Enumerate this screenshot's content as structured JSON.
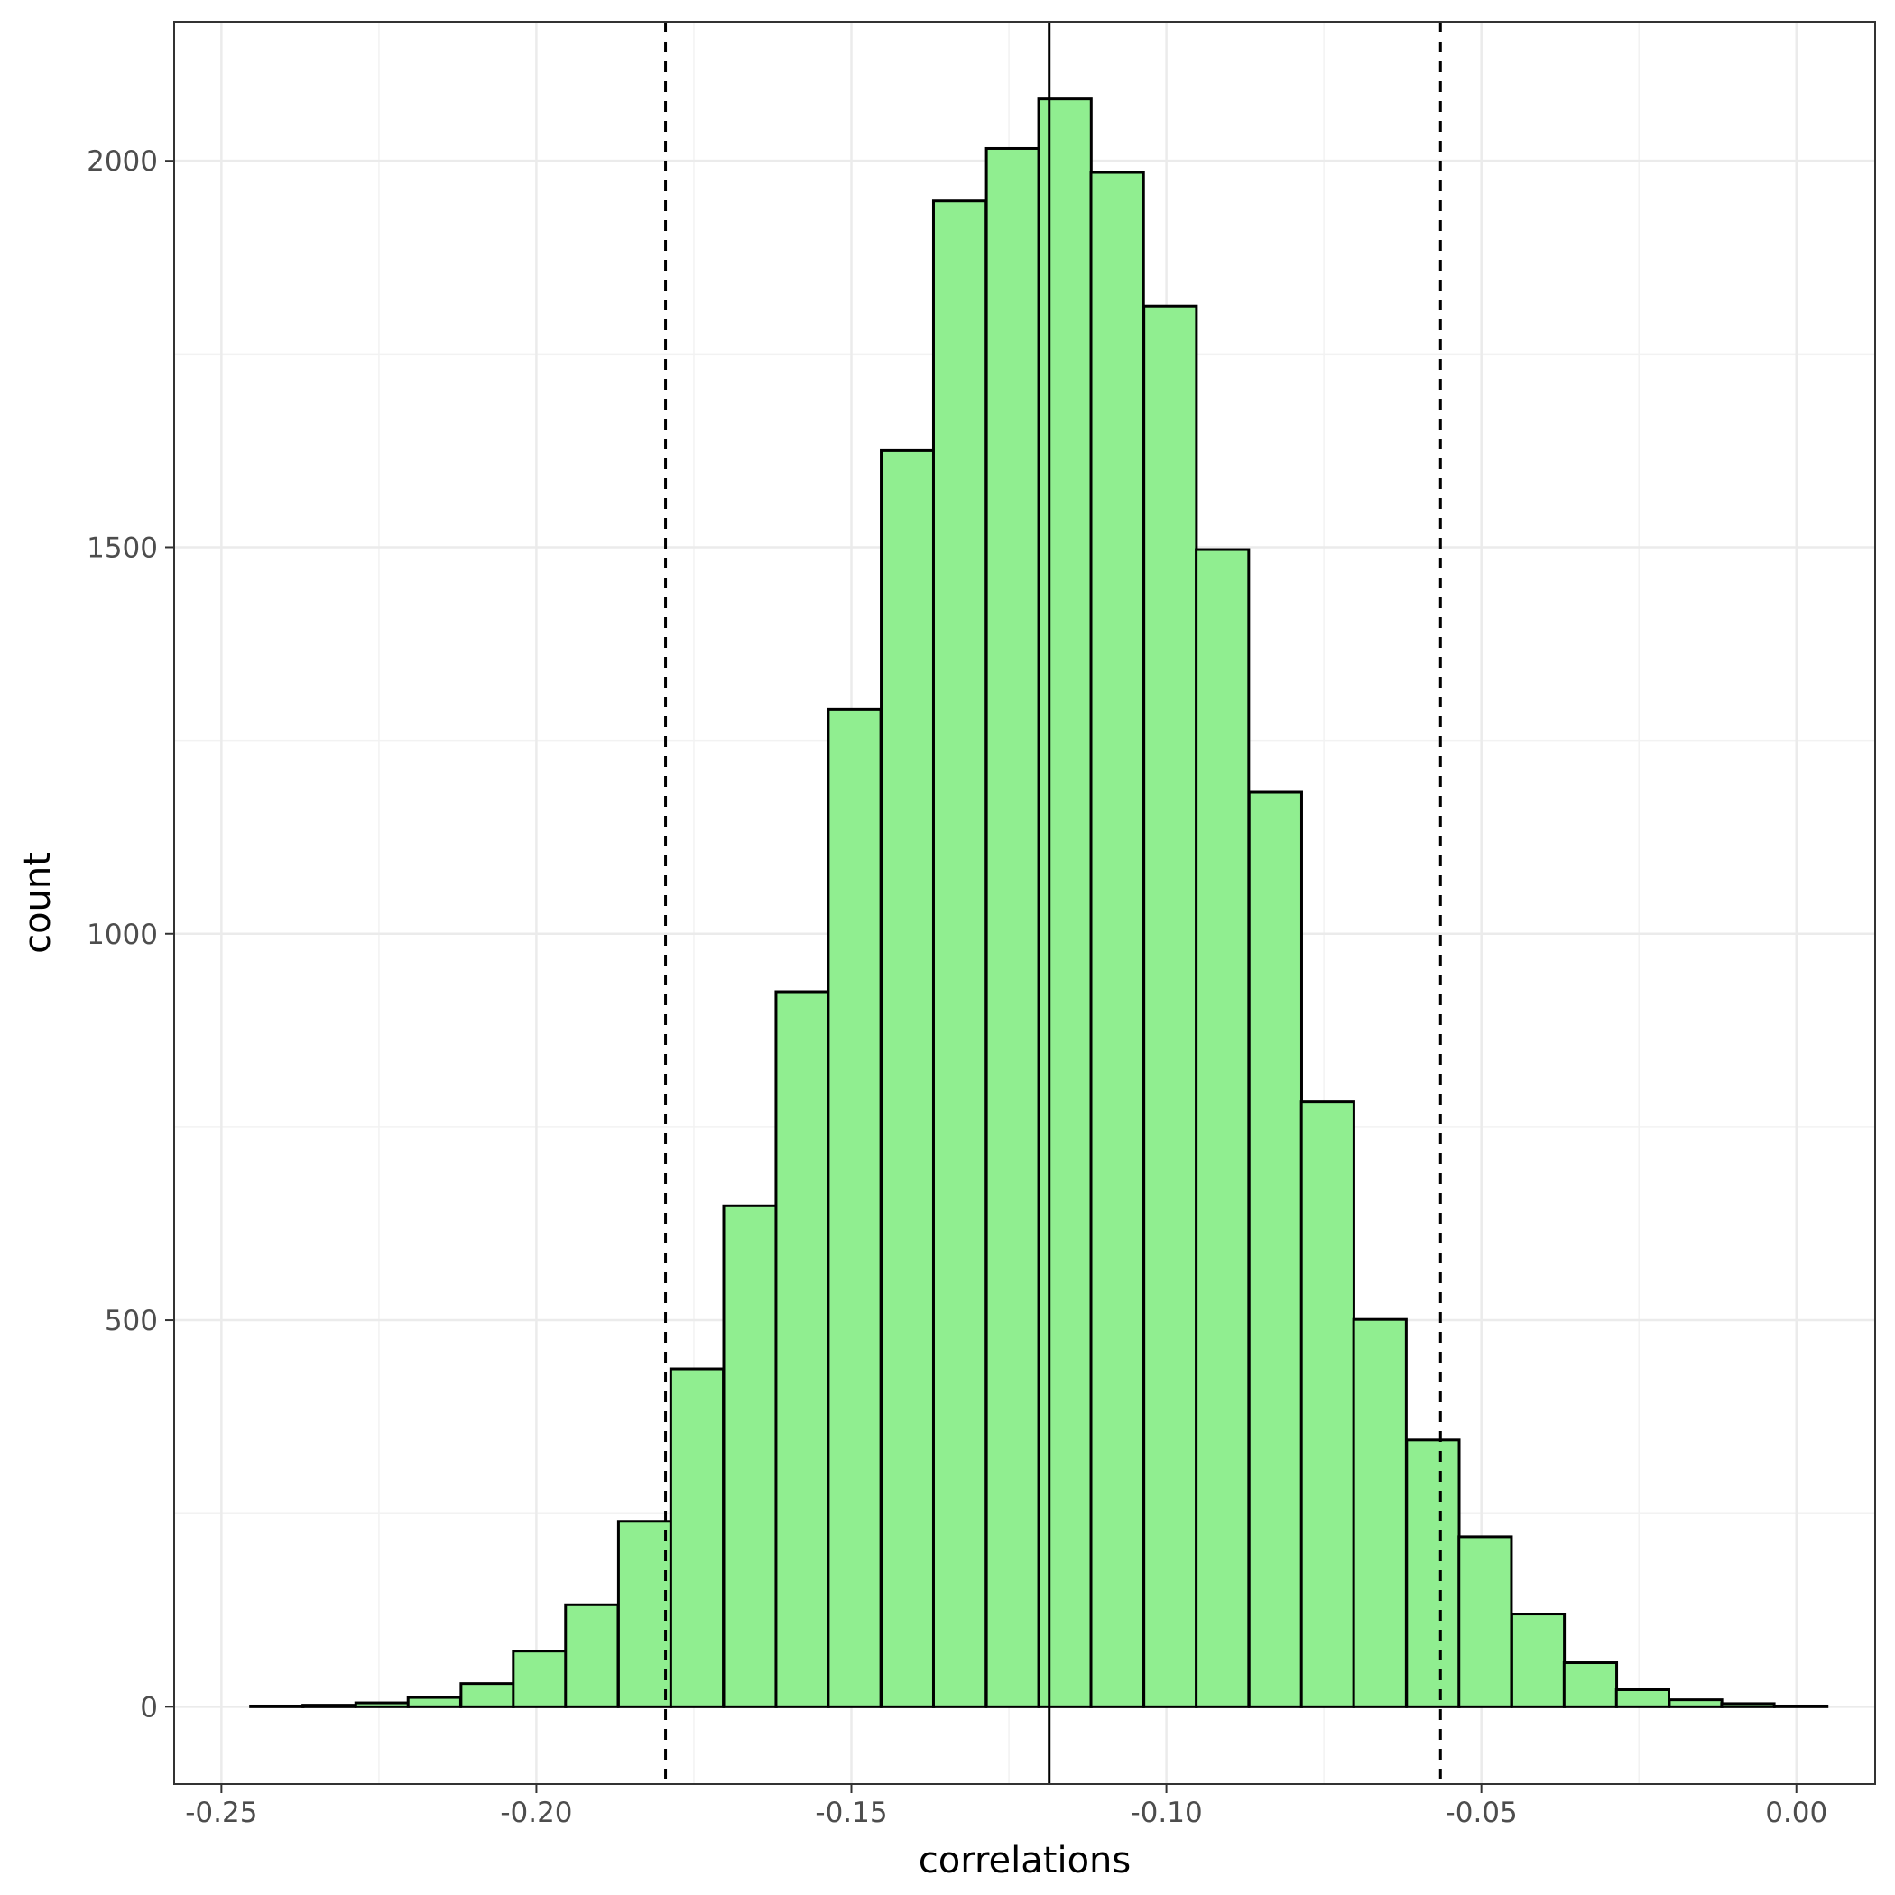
{
  "chart_data": {
    "type": "bar",
    "subtype": "histogram",
    "title": "",
    "xlabel": "correlations",
    "ylabel": "count",
    "xlim": [
      -0.2575,
      0.0125
    ],
    "ylim": [
      -100,
      2180
    ],
    "x_ticks": [
      -0.25,
      -0.2,
      -0.15,
      -0.1,
      -0.05,
      0.0
    ],
    "x_tick_labels": [
      "-0.25",
      "-0.20",
      "-0.15",
      "-0.10",
      "-0.05",
      "0.00"
    ],
    "y_ticks": [
      0,
      500,
      1000,
      1500,
      2000
    ],
    "y_tick_labels": [
      "0",
      "500",
      "1000",
      "1500",
      "2000"
    ],
    "grid": true,
    "legend": "none",
    "bin_width": 0.00834,
    "bins": [
      {
        "x": -0.2412,
        "count": 1
      },
      {
        "x": -0.2329,
        "count": 2
      },
      {
        "x": -0.2245,
        "count": 5
      },
      {
        "x": -0.2162,
        "count": 12
      },
      {
        "x": -0.2078,
        "count": 30
      },
      {
        "x": -0.1995,
        "count": 72
      },
      {
        "x": -0.1912,
        "count": 132
      },
      {
        "x": -0.1828,
        "count": 240
      },
      {
        "x": -0.1745,
        "count": 437
      },
      {
        "x": -0.1661,
        "count": 648
      },
      {
        "x": -0.1578,
        "count": 925
      },
      {
        "x": -0.1495,
        "count": 1290
      },
      {
        "x": -0.1411,
        "count": 1625
      },
      {
        "x": -0.1328,
        "count": 1948
      },
      {
        "x": -0.1244,
        "count": 2016
      },
      {
        "x": -0.1161,
        "count": 2080
      },
      {
        "x": -0.1078,
        "count": 1985
      },
      {
        "x": -0.0994,
        "count": 1812
      },
      {
        "x": -0.0911,
        "count": 1497
      },
      {
        "x": -0.0827,
        "count": 1183
      },
      {
        "x": -0.0744,
        "count": 783
      },
      {
        "x": -0.0661,
        "count": 501
      },
      {
        "x": -0.0577,
        "count": 345
      },
      {
        "x": -0.0494,
        "count": 220
      },
      {
        "x": -0.041,
        "count": 120
      },
      {
        "x": -0.0327,
        "count": 57
      },
      {
        "x": -0.0244,
        "count": 22
      },
      {
        "x": -0.016,
        "count": 9
      },
      {
        "x": -0.0077,
        "count": 4
      },
      {
        "x": 0.0007,
        "count": 1
      }
    ],
    "vlines": [
      {
        "x": -0.1795,
        "style": "dashed"
      },
      {
        "x": -0.1186,
        "style": "solid"
      },
      {
        "x": -0.0565,
        "style": "dashed"
      }
    ],
    "colors": {
      "bar_fill": "#90ee90",
      "bar_stroke": "#000000",
      "grid_major": "#ebebeb",
      "grid_minor": "#f2f2f2",
      "panel_border": "#333333",
      "tick_text": "#4d4d4d"
    }
  }
}
